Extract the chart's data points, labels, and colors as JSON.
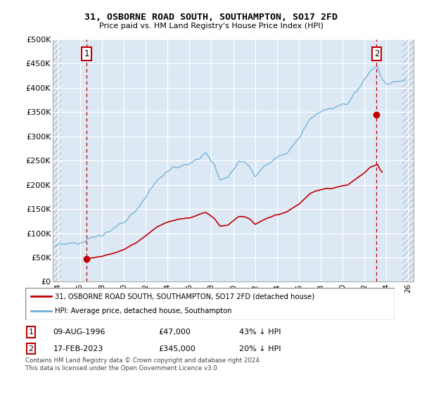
{
  "title": "31, OSBORNE ROAD SOUTH, SOUTHAMPTON, SO17 2FD",
  "subtitle": "Price paid vs. HM Land Registry's House Price Index (HPI)",
  "xlim": [
    1993.5,
    2026.5
  ],
  "ylim": [
    0,
    500000
  ],
  "yticks": [
    0,
    50000,
    100000,
    150000,
    200000,
    250000,
    300000,
    350000,
    400000,
    450000,
    500000
  ],
  "ytick_labels": [
    "£0",
    "£50K",
    "£100K",
    "£150K",
    "£200K",
    "£250K",
    "£300K",
    "£350K",
    "£400K",
    "£450K",
    "£500K"
  ],
  "hpi_color": "#6baed6",
  "price_color": "#c00000",
  "sale1_x": 1996.6,
  "sale1_y": 47000,
  "sale2_x": 2023.12,
  "sale2_y": 345000,
  "legend_label1": "31, OSBORNE ROAD SOUTH, SOUTHAMPTON, SO17 2FD (detached house)",
  "legend_label2": "HPI: Average price, detached house, Southampton",
  "note1_date": "09-AUG-1996",
  "note1_price": "£47,000",
  "note1_hpi": "43% ↓ HPI",
  "note2_date": "17-FEB-2023",
  "note2_price": "£345,000",
  "note2_hpi": "20% ↓ HPI",
  "footer": "Contains HM Land Registry data © Crown copyright and database right 2024.\nThis data is licensed under the Open Government Licence v3.0.",
  "grid_color": "#c8d8e8",
  "bg_color": "#dce8f4",
  "hatch_bg_color": "#c8d8e8",
  "plot_bg_color": "#dce8f4"
}
